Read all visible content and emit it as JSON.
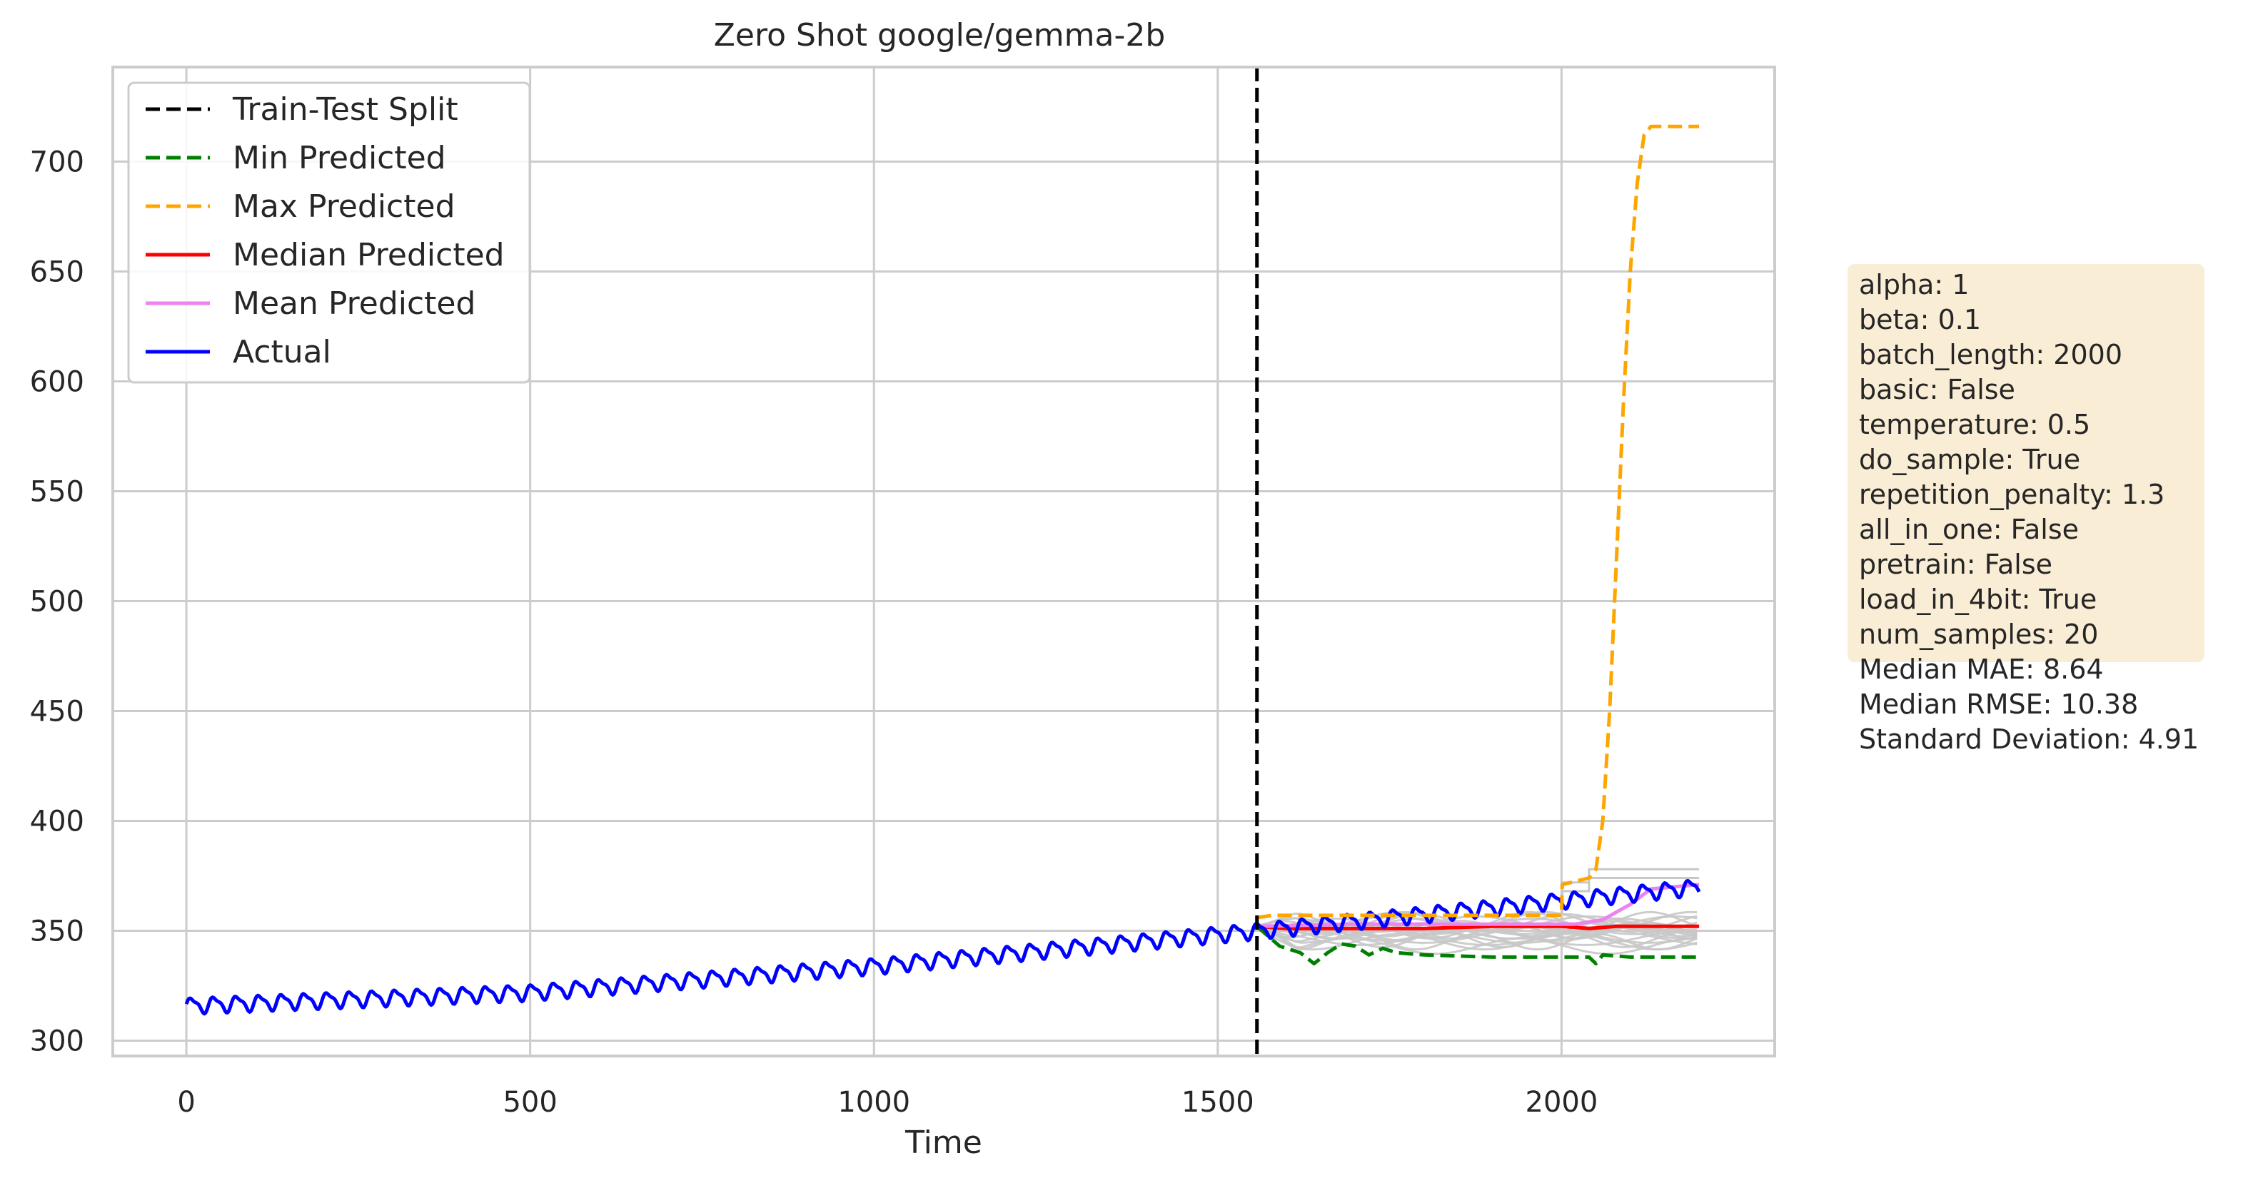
{
  "chart_data": {
    "type": "line",
    "title": "Zero Shot google/gemma-2b",
    "xlabel": "Time",
    "ylabel": "",
    "xlim": [
      -107,
      2310
    ],
    "ylim": [
      293,
      743
    ],
    "x_ticks": [
      0,
      500,
      1000,
      1500,
      2000
    ],
    "y_ticks": [
      300,
      350,
      400,
      450,
      500,
      550,
      600,
      650,
      700
    ],
    "grid": true,
    "legend_position": "top-left",
    "split_x": 1557,
    "series": [
      {
        "name": "Train-Test Split",
        "color": "#000000",
        "dash": true
      },
      {
        "name": "Min Predicted",
        "color": "#008000",
        "dash": true
      },
      {
        "name": "Max Predicted",
        "color": "#ffa500",
        "dash": true
      },
      {
        "name": "Median Predicted",
        "color": "#ff0000",
        "dash": false
      },
      {
        "name": "Mean Predicted",
        "color": "#ee82ee",
        "dash": false
      },
      {
        "name": "Actual",
        "color": "#0000ff",
        "dash": false
      }
    ],
    "actual_trend": [
      [
        0,
        316
      ],
      [
        500,
        322
      ],
      [
        1000,
        334
      ],
      [
        1557,
        350
      ],
      [
        2200,
        370
      ]
    ],
    "actual_amplitude": 3.2,
    "actual_period": 33,
    "min_predicted": [
      [
        1557,
        352
      ],
      [
        1590,
        343
      ],
      [
        1620,
        340
      ],
      [
        1640,
        335
      ],
      [
        1660,
        340
      ],
      [
        1680,
        344
      ],
      [
        1700,
        343
      ],
      [
        1720,
        339
      ],
      [
        1740,
        342
      ],
      [
        1760,
        340
      ],
      [
        1800,
        339
      ],
      [
        1900,
        338
      ],
      [
        2000,
        338
      ],
      [
        2040,
        338
      ],
      [
        2050,
        335
      ],
      [
        2060,
        339
      ],
      [
        2100,
        338
      ],
      [
        2200,
        338
      ]
    ],
    "max_predicted": [
      [
        1557,
        356
      ],
      [
        1580,
        357
      ],
      [
        2000,
        357
      ],
      [
        2001,
        371
      ],
      [
        2040,
        374
      ],
      [
        2050,
        378
      ],
      [
        2060,
        400
      ],
      [
        2070,
        450
      ],
      [
        2080,
        520
      ],
      [
        2090,
        590
      ],
      [
        2100,
        650
      ],
      [
        2110,
        690
      ],
      [
        2120,
        712
      ],
      [
        2130,
        716
      ],
      [
        2200,
        716
      ]
    ],
    "median_predicted": [
      [
        1557,
        352
      ],
      [
        1600,
        351
      ],
      [
        1800,
        351
      ],
      [
        1900,
        352
      ],
      [
        2000,
        352
      ],
      [
        2040,
        351
      ],
      [
        2080,
        352
      ],
      [
        2200,
        352
      ]
    ],
    "mean_predicted": [
      [
        1557,
        352
      ],
      [
        1700,
        353
      ],
      [
        1900,
        353
      ],
      [
        2020,
        353
      ],
      [
        2060,
        355
      ],
      [
        2100,
        362
      ],
      [
        2130,
        369
      ],
      [
        2200,
        371
      ]
    ],
    "sample_levels": [
      355,
      354,
      350,
      352,
      348,
      346,
      351,
      349,
      353,
      347,
      345,
      350,
      343,
      352,
      348,
      350,
      355,
      345,
      353,
      347
    ],
    "sample_upper_step": {
      "x": 2040,
      "values": [
        378,
        374
      ]
    },
    "info_box": {
      "params": [
        "alpha: 1",
        "beta: 0.1",
        "batch_length: 2000",
        "basic: False",
        "temperature: 0.5",
        "do_sample: True",
        "repetition_penalty: 1.3",
        "all_in_one: False",
        "pretrain: False",
        "load_in_4bit: True",
        "num_samples: 20"
      ],
      "metrics": [
        "Median MAE: 8.64",
        "Median RMSE: 10.38",
        "Standard Deviation: 4.91"
      ],
      "box_color": "#f5deb3"
    }
  }
}
